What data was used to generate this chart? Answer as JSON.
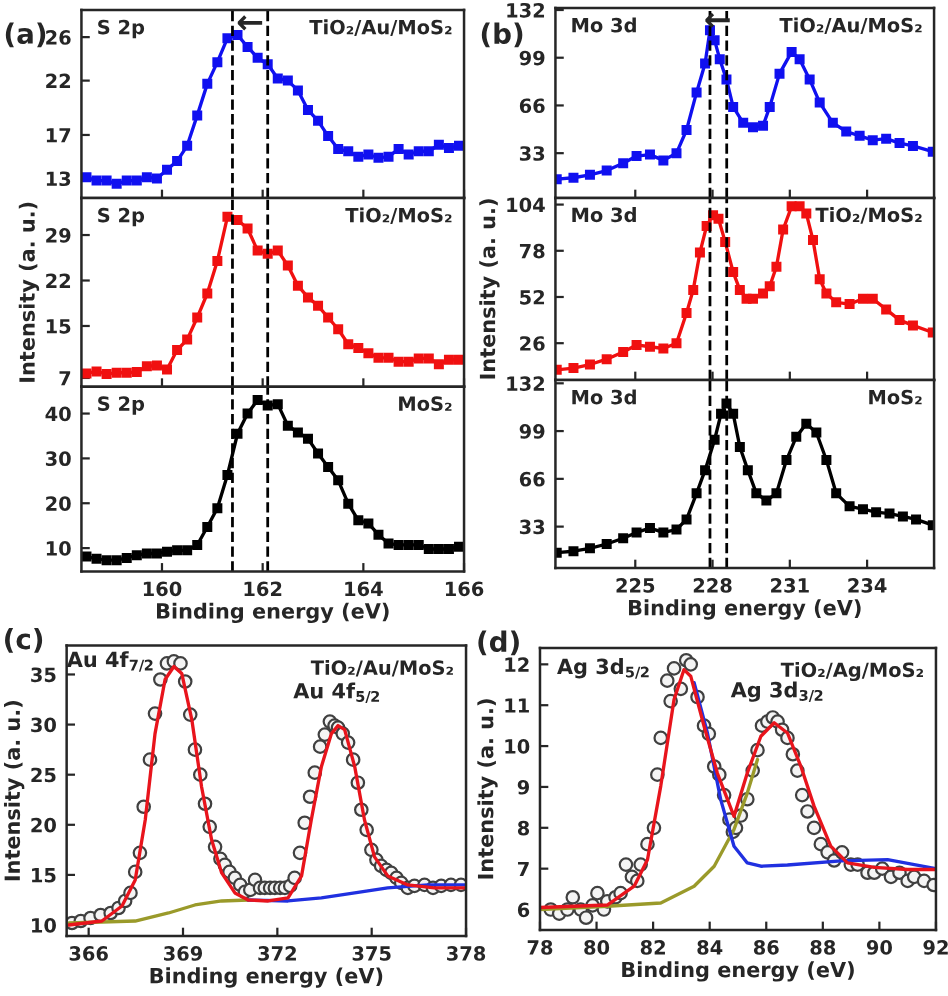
{
  "chart_data": [
    {
      "type": "line",
      "title": "(a)",
      "annotations": [
        "S 2p",
        "TiO₂/Au/MoS₂",
        {
          "text": "←",
          "x": 161.75,
          "y": 27.2
        }
      ],
      "x": [
        158.5,
        158.7,
        158.9,
        159.1,
        159.3,
        159.5,
        159.7,
        159.9,
        160.1,
        160.3,
        160.5,
        160.7,
        160.9,
        161.1,
        161.3,
        161.5,
        161.7,
        161.9,
        162.1,
        162.3,
        162.5,
        162.7,
        162.9,
        163.1,
        163.3,
        163.5,
        163.7,
        163.9,
        164.1,
        164.3,
        164.5,
        164.7,
        164.9,
        165.1,
        165.3,
        165.5,
        165.7,
        165.9
      ],
      "series": [
        {
          "color": "#1010f0",
          "values": [
            13.1,
            12.8,
            12.8,
            12.5,
            12.8,
            12.8,
            13.1,
            13.0,
            13.8,
            14.6,
            16.0,
            18.8,
            21.7,
            23.7,
            25.9,
            26.2,
            25.1,
            24.1,
            23.5,
            22.2,
            22.0,
            21.1,
            19.3,
            18.3,
            16.9,
            15.7,
            15.5,
            15.0,
            15.2,
            14.9,
            15.0,
            15.7,
            15.2,
            15.5,
            15.5,
            16.1,
            15.8,
            16.0
          ]
        }
      ],
      "xlim": [
        158.4,
        166
      ],
      "xticks": [
        160,
        162,
        164,
        166
      ],
      "ylim": [
        11.2,
        28.5
      ],
      "yticks": [
        13,
        17,
        22,
        26
      ],
      "ref_lines": [
        {
          "axis": "x",
          "value": 161.4,
          "line_style": "dashed",
          "color": "#000000"
        },
        {
          "axis": "x",
          "value": 162.1,
          "line_style": "dashed",
          "color": "#000000"
        }
      ],
      "marker": "square",
      "line_style": "solid",
      "tick_labels": "y"
    },
    {
      "type": "line",
      "ylabel": "Intensity (a. u.)",
      "annotations": [
        "S 2p",
        "TiO₂/MoS₂"
      ],
      "x": [
        158.5,
        158.7,
        158.9,
        159.1,
        159.3,
        159.5,
        159.7,
        159.9,
        160.1,
        160.3,
        160.5,
        160.7,
        160.9,
        161.1,
        161.3,
        161.5,
        161.7,
        161.9,
        162.1,
        162.3,
        162.5,
        162.7,
        162.9,
        163.1,
        163.3,
        163.5,
        163.7,
        163.9,
        164.1,
        164.3,
        164.5,
        164.7,
        164.9,
        165.1,
        165.3,
        165.5,
        165.7,
        165.9
      ],
      "series": [
        {
          "color": "#f01010",
          "values": [
            7.7,
            8.0,
            7.6,
            7.8,
            7.8,
            7.9,
            8.8,
            8.9,
            8.3,
            11.3,
            12.9,
            16.3,
            20.0,
            25.0,
            31.8,
            31.3,
            30.0,
            26.6,
            26.1,
            26.6,
            24.3,
            21.2,
            19.4,
            18.1,
            16.3,
            14.5,
            12.2,
            11.6,
            10.8,
            10.1,
            10.1,
            9.5,
            9.5,
            10.0,
            10.0,
            9.1,
            9.8,
            9.8
          ]
        }
      ],
      "xlim": [
        158.4,
        166
      ],
      "xticks": [
        160,
        162,
        164,
        166
      ],
      "ylim": [
        5.66,
        34.7
      ],
      "yticks": [
        7,
        15,
        22,
        29
      ],
      "ref_lines": [
        {
          "axis": "x",
          "value": 161.4,
          "line_style": "dashed",
          "color": "#000000"
        },
        {
          "axis": "x",
          "value": 162.1,
          "line_style": "dashed",
          "color": "#000000"
        }
      ],
      "marker": "square",
      "line_style": "solid",
      "tick_labels": "y"
    },
    {
      "type": "line",
      "xlabel": "Binding energy (eV)",
      "annotations": [
        "S 2p",
        "MoS₂"
      ],
      "x": [
        158.5,
        158.7,
        158.9,
        159.1,
        159.3,
        159.5,
        159.7,
        159.9,
        160.1,
        160.3,
        160.5,
        160.7,
        160.9,
        161.1,
        161.3,
        161.5,
        161.7,
        161.9,
        162.1,
        162.3,
        162.5,
        162.7,
        162.9,
        163.1,
        163.3,
        163.5,
        163.7,
        163.9,
        164.1,
        164.3,
        164.5,
        164.7,
        164.9,
        165.1,
        165.3,
        165.5,
        165.7,
        165.9
      ],
      "series": [
        {
          "color": "#000000",
          "values": [
            8.1,
            7.6,
            7.3,
            7.3,
            7.8,
            8.4,
            8.8,
            8.8,
            9.2,
            9.5,
            9.5,
            10.7,
            14.7,
            18.9,
            26.3,
            35.5,
            40.0,
            43.0,
            41.8,
            42.1,
            37.3,
            35.8,
            34.4,
            31.1,
            28.1,
            25.1,
            19.9,
            16.2,
            15.5,
            13.0,
            11.0,
            10.7,
            10.7,
            10.7,
            9.8,
            9.8,
            9.8,
            10.3
          ]
        }
      ],
      "xlim": [
        158.4,
        166
      ],
      "xticks": [
        160,
        162,
        164,
        166
      ],
      "ylim": [
        4.8,
        46
      ],
      "yticks": [
        10,
        20,
        30,
        40
      ],
      "ref_lines": [
        {
          "axis": "x",
          "value": 161.4,
          "line_style": "dashed",
          "color": "#000000"
        },
        {
          "axis": "x",
          "value": 162.1,
          "line_style": "dashed",
          "color": "#000000"
        }
      ],
      "marker": "square",
      "line_style": "solid"
    },
    {
      "type": "line",
      "title": "(b)",
      "annotations": [
        "Mo 3d",
        "TiO₂/Au/MoS₂",
        {
          "text": "←",
          "x": 228.2,
          "y": 124
        }
      ],
      "series": [
        {
          "color": "#1010f0",
          "x": [
            221.95,
            222.6,
            223.24,
            223.89,
            224.53,
            225.05,
            225.57,
            226.09,
            226.6,
            226.99,
            227.38,
            227.71,
            227.9,
            228.08,
            228.28,
            228.54,
            228.8,
            229.19,
            229.57,
            229.96,
            230.22,
            230.6,
            231.07,
            231.38,
            231.77,
            232.16,
            232.67,
            233.19,
            233.71,
            234.22,
            234.74,
            235.26,
            235.78,
            236.55
          ],
          "values": [
            15,
            16,
            18,
            21,
            26,
            31,
            32,
            28,
            33,
            49,
            75,
            95,
            118,
            111,
            98,
            84,
            65,
            54,
            51,
            52,
            65,
            88,
            103,
            98,
            84,
            68,
            54,
            48,
            45,
            42,
            43,
            40,
            38,
            34
          ]
        }
      ],
      "xlim": [
        221.9,
        236.6
      ],
      "xticks": [
        225,
        228,
        231,
        234
      ],
      "ylim": [
        2,
        133.4
      ],
      "yticks": [
        33,
        66,
        99,
        132
      ],
      "ref_lines": [
        {
          "axis": "x",
          "value": 227.9,
          "line_style": "dashed",
          "color": "#000000"
        },
        {
          "axis": "x",
          "value": 228.55,
          "line_style": "dashed",
          "color": "#000000"
        }
      ],
      "marker": "square",
      "line_style": "solid",
      "tick_labels": "y"
    },
    {
      "type": "line",
      "ylabel": "Intensity (a. u.)",
      "annotations": [
        "Mo 3d",
        "TiO₂/MoS₂"
      ],
      "series": [
        {
          "color": "#f01010",
          "x": [
            221.95,
            222.6,
            223.24,
            223.89,
            224.53,
            225.05,
            225.57,
            226.09,
            226.6,
            226.99,
            227.25,
            227.51,
            227.77,
            228.02,
            228.23,
            228.49,
            228.8,
            229.06,
            229.32,
            229.57,
            229.96,
            230.22,
            230.48,
            230.74,
            231.07,
            231.38,
            231.64,
            231.9,
            232.16,
            232.42,
            232.8,
            233.32,
            233.84,
            234.22,
            234.74,
            235.26,
            235.78,
            236.55
          ],
          "values": [
            11,
            12,
            14,
            17,
            21,
            25,
            24,
            23,
            26,
            43,
            56,
            77,
            92,
            98,
            96,
            83,
            66,
            56,
            51,
            51,
            54,
            58,
            69,
            90,
            103,
            103,
            99,
            84,
            62,
            54,
            49,
            48,
            51,
            51,
            45,
            39,
            36,
            32
          ]
        }
      ],
      "xlim": [
        221.9,
        236.6
      ],
      "xticks": [
        225,
        228,
        231,
        234
      ],
      "ylim": [
        5.3,
        107.7
      ],
      "yticks": [
        26,
        52,
        78,
        104
      ],
      "ref_lines": [
        {
          "axis": "x",
          "value": 227.9,
          "line_style": "dashed",
          "color": "#000000"
        },
        {
          "axis": "x",
          "value": 228.55,
          "line_style": "dashed",
          "color": "#000000"
        }
      ],
      "marker": "square",
      "line_style": "solid",
      "tick_labels": "y"
    },
    {
      "type": "line",
      "xlabel": "Binding energy (eV)",
      "annotations": [
        "Mo 3d",
        "MoS₂"
      ],
      "series": [
        {
          "color": "#000000",
          "x": [
            221.95,
            222.6,
            223.24,
            223.89,
            224.53,
            225.05,
            225.57,
            226.09,
            226.6,
            226.99,
            227.38,
            227.71,
            228.08,
            228.33,
            228.54,
            228.8,
            229.06,
            229.37,
            229.7,
            230.09,
            230.48,
            230.87,
            231.25,
            231.64,
            232.03,
            232.42,
            232.8,
            233.32,
            233.84,
            234.35,
            234.87,
            235.39,
            235.9,
            236.55
          ],
          "values": [
            15,
            16,
            18,
            21,
            25,
            29,
            32,
            29,
            31,
            38,
            56,
            72,
            93,
            111,
            118,
            111,
            88,
            72,
            56,
            51,
            56,
            79,
            95,
            104,
            98,
            79,
            56,
            47,
            45,
            43,
            42,
            40,
            38,
            34
          ]
        }
      ],
      "xlim": [
        221.9,
        236.6
      ],
      "xticks": [
        225,
        228,
        231,
        234
      ],
      "ylim": [
        4.4,
        134.3
      ],
      "yticks": [
        33,
        66,
        99,
        132
      ],
      "ref_lines": [
        {
          "axis": "x",
          "value": 227.9,
          "line_style": "dashed",
          "color": "#000000"
        },
        {
          "axis": "x",
          "value": 228.55,
          "line_style": "dashed",
          "color": "#000000"
        }
      ],
      "marker": "square",
      "line_style": "solid"
    },
    {
      "type": "scatter",
      "title": "(c)",
      "xlabel": "Binding energy (eV)",
      "ylabel": "Intensity (a. u.)",
      "annotations": [
        {
          "text": "Au 4f$_{7/2}$",
          "x": 368.8,
          "y": 36.3
        },
        {
          "text": "Au 4f$_{5/2}$",
          "x": 373.9,
          "y": 30.2
        },
        "TiO₂/Au/MoS₂"
      ],
      "series": [
        {
          "type": "scatter",
          "color": "#404040",
          "x": [
            365.47,
            365.75,
            366.06,
            366.38,
            366.7,
            366.95,
            367.16,
            367.33,
            367.48,
            367.63,
            367.75,
            367.95,
            368.11,
            368.28,
            368.49,
            368.71,
            368.92,
            369.07,
            369.23,
            369.38,
            369.55,
            369.7,
            369.85,
            370.02,
            370.19,
            370.33,
            370.48,
            370.65,
            370.82,
            370.97,
            371.14,
            371.29,
            371.45,
            371.6,
            371.77,
            371.92,
            372.09,
            372.24,
            372.41,
            372.55,
            372.72,
            372.87,
            373.04,
            373.19,
            373.36,
            373.51,
            373.67,
            373.82,
            373.93,
            374.08,
            374.25,
            374.41,
            374.56,
            374.67,
            374.84,
            374.99,
            375.15,
            375.3,
            375.47,
            375.62,
            375.79,
            375.94,
            376.15,
            376.36,
            376.68,
            376.95,
            377.21,
            377.52,
            377.84
          ],
          "values": [
            10.2,
            10.4,
            10.7,
            11.0,
            11.2,
            11.7,
            12.4,
            13.2,
            15.3,
            17.2,
            21.8,
            26.5,
            31.1,
            34.5,
            36.1,
            36.3,
            36.1,
            34.3,
            31.0,
            27.5,
            25.0,
            22.1,
            19.8,
            17.8,
            16.6,
            16.0,
            15.3,
            14.7,
            14.0,
            13.3,
            13.5,
            14.5,
            13.7,
            13.7,
            13.7,
            13.7,
            13.7,
            13.7,
            13.9,
            14.7,
            17.2,
            20.2,
            22.8,
            25.2,
            27.8,
            29.0,
            30.3,
            29.9,
            29.7,
            29.1,
            28.2,
            26.5,
            24.2,
            21.5,
            19.5,
            17.5,
            16.5,
            15.9,
            15.5,
            15.2,
            14.7,
            14.2,
            13.7,
            13.9,
            14.0,
            13.7,
            13.9,
            14.0,
            14.0
          ]
        },
        {
          "type": "line",
          "marker": "none",
          "color": "#9a9a2a",
          "x": [
            365.37,
            367.48,
            368.54,
            369.38,
            370.23,
            371.07
          ],
          "values": [
            10.2,
            10.4,
            11.2,
            12.0,
            12.4,
            12.5
          ]
        },
        {
          "type": "line",
          "marker": "none",
          "color": "#2030e0",
          "x": [
            371.07,
            372.34,
            373.4,
            374.46,
            375.51,
            376.78,
            378.0
          ],
          "values": [
            12.5,
            12.4,
            12.7,
            13.2,
            13.7,
            14.0,
            14.0
          ]
        },
        {
          "type": "line",
          "marker": "none",
          "color": "#e8141c",
          "x": [
            365.37,
            366.42,
            367.06,
            367.48,
            367.8,
            368.11,
            368.43,
            368.71,
            368.96,
            369.28,
            369.59,
            369.91,
            370.23,
            370.65,
            371.07,
            371.71,
            372.34,
            372.77,
            373.08,
            373.4,
            373.72,
            373.93,
            374.14,
            374.46,
            374.77,
            375.09,
            375.51,
            376.15,
            376.99,
            378.0
          ],
          "values": [
            10.0,
            10.4,
            11.9,
            14.5,
            20.5,
            29.1,
            34.5,
            35.8,
            35.1,
            30.5,
            23.8,
            18.5,
            15.2,
            13.2,
            12.5,
            12.4,
            12.7,
            14.9,
            20.5,
            25.8,
            29.1,
            29.9,
            29.5,
            25.8,
            20.5,
            16.8,
            14.9,
            14.0,
            13.7,
            13.7
          ]
        }
      ],
      "xlim": [
        365.3,
        378
      ],
      "xticks": [
        366,
        369,
        372,
        375,
        378
      ],
      "ylim": [
        8.9,
        37.9
      ],
      "yticks": [
        10,
        15,
        20,
        25,
        30,
        35
      ],
      "marker": "circle",
      "line_style": "solid"
    },
    {
      "type": "scatter",
      "title": "(d)",
      "xlabel": "Binding energy (eV)",
      "ylabel": "Intensity (a. u.)",
      "annotations": [
        {
          "text": "Ag 3d$_{5/2}$",
          "x": 82.7,
          "y": 11.9
        },
        {
          "text": "Ag 3d$_{3/2}$",
          "x": 86.4,
          "y": 10.6
        },
        "TiO₂/Ag/MoS₂"
      ],
      "series": [
        {
          "type": "scatter",
          "color": "#404040",
          "x": [
            78.38,
            78.68,
            78.97,
            79.16,
            79.44,
            79.63,
            79.86,
            80.03,
            80.26,
            80.38,
            80.67,
            80.85,
            81.04,
            81.25,
            81.44,
            81.56,
            81.8,
            82.03,
            82.15,
            82.27,
            82.5,
            82.62,
            82.74,
            82.98,
            83.17,
            83.33,
            83.57,
            83.8,
            83.97,
            84.16,
            84.34,
            84.51,
            84.7,
            84.82,
            84.93,
            85.1,
            85.33,
            85.52,
            85.69,
            85.85,
            86.04,
            86.23,
            86.4,
            86.56,
            86.75,
            86.94,
            87.1,
            87.27,
            87.46,
            87.69,
            87.93,
            88.17,
            88.4,
            88.68,
            88.99,
            89.23,
            89.58,
            89.82,
            90.1,
            90.41,
            90.71,
            91.0,
            91.23,
            91.58,
            91.92
          ],
          "values": [
            6.0,
            5.9,
            6.0,
            6.3,
            6.0,
            5.8,
            6.1,
            6.4,
            6.0,
            6.2,
            6.3,
            6.4,
            7.1,
            6.8,
            6.7,
            7.1,
            7.6,
            8.0,
            9.3,
            10.2,
            11.6,
            11.1,
            11.9,
            11.4,
            12.1,
            12.0,
            11.2,
            10.5,
            10.3,
            9.5,
            9.3,
            8.8,
            8.2,
            7.9,
            8.0,
            8.3,
            8.7,
            9.4,
            9.9,
            10.5,
            10.6,
            10.7,
            10.6,
            10.4,
            10.2,
            9.8,
            9.4,
            8.8,
            8.4,
            8.0,
            7.6,
            7.4,
            7.2,
            7.4,
            7.1,
            7.1,
            6.9,
            6.9,
            7.0,
            6.8,
            6.9,
            6.7,
            6.8,
            6.7,
            6.6
          ]
        },
        {
          "type": "line",
          "marker": "none",
          "color": "#9a9a2a",
          "x": [
            78,
            80.38,
            82.27,
            83.45,
            84.16,
            84.86,
            85.33,
            85.69
          ],
          "values": [
            6.0,
            6.08,
            6.16,
            6.57,
            7.06,
            7.96,
            8.85,
            9.67
          ]
        },
        {
          "type": "line",
          "marker": "none",
          "color": "#2030e0",
          "x": [
            83.45,
            83.92,
            84.39,
            84.86,
            85.33,
            85.81,
            86.75,
            88.64,
            90.29,
            92
          ],
          "values": [
            11.55,
            10.32,
            8.69,
            7.55,
            7.14,
            7.06,
            7.09,
            7.19,
            7.22,
            7.0
          ]
        },
        {
          "type": "line",
          "marker": "none",
          "color": "#e8141c",
          "x": [
            78,
            80.38,
            81.33,
            81.8,
            82.27,
            82.74,
            83.09,
            83.33,
            83.8,
            84.27,
            84.86,
            85.33,
            85.81,
            86.28,
            86.75,
            87.22,
            87.69,
            88.28,
            88.87,
            89.82,
            91.0,
            92
          ],
          "values": [
            6.05,
            6.11,
            6.57,
            7.22,
            9.02,
            11.14,
            11.87,
            11.71,
            10.49,
            9.34,
            8.28,
            9.34,
            10.24,
            10.57,
            10.32,
            9.51,
            8.53,
            7.55,
            7.14,
            7.03,
            6.98,
            6.98
          ]
        }
      ],
      "xlim": [
        78,
        92
      ],
      "xticks": [
        78,
        80,
        82,
        84,
        86,
        88,
        90,
        92
      ],
      "ylim": [
        5.5,
        12.4
      ],
      "yticks": [
        6,
        7,
        8,
        9,
        10,
        11,
        12
      ],
      "marker": "circle",
      "line_style": "solid"
    }
  ]
}
